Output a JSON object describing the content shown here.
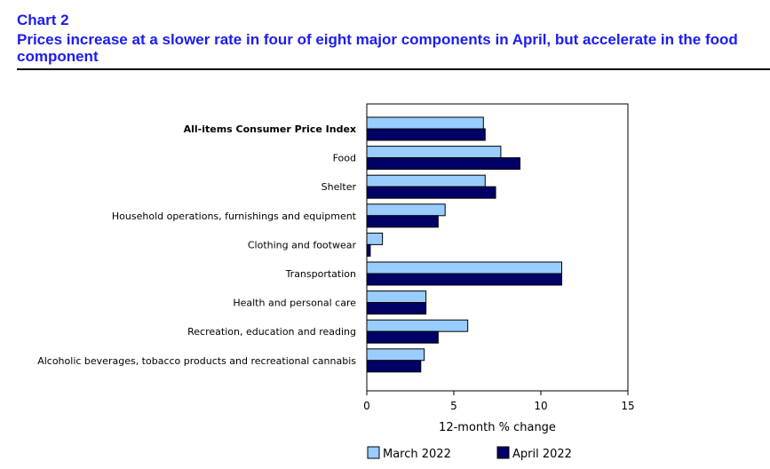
{
  "header": {
    "chart_number": "Chart 2",
    "title": "Prices increase at a slower rate in four of eight major components in April, but accelerate in the food component"
  },
  "chart_data": {
    "type": "bar",
    "orientation": "horizontal",
    "categories": [
      "All-items Consumer Price Index",
      "Food",
      "Shelter",
      "Household operations, furnishings and equipment",
      "Clothing and footwear",
      "Transportation",
      "Health and personal care",
      "Recreation, education and reading",
      "Alcoholic beverages, tobacco products and recreational cannabis"
    ],
    "bold_categories": [
      "All-items Consumer Price Index"
    ],
    "series": [
      {
        "name": "March 2022",
        "color": "#99ccff",
        "values": [
          6.7,
          7.7,
          6.8,
          4.5,
          0.9,
          11.2,
          3.4,
          5.8,
          3.3
        ]
      },
      {
        "name": "April 2022",
        "color": "#000066",
        "values": [
          6.8,
          8.8,
          7.4,
          4.1,
          0.2,
          11.2,
          3.4,
          4.1,
          3.1
        ]
      }
    ],
    "xlabel": "12-month % change",
    "xlim": [
      0,
      15
    ],
    "xticks": [
      0,
      5,
      10,
      15
    ],
    "grid": false,
    "legend_position": "bottom"
  }
}
